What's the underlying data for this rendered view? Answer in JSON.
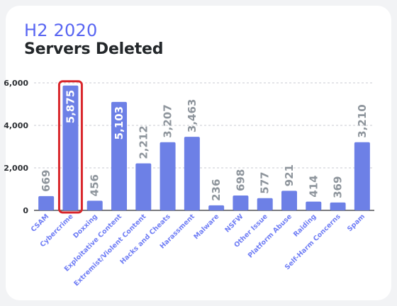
{
  "colors": {
    "background": "#f2f3f5",
    "card": "#ffffff",
    "accent": "#5865f2",
    "bar": "#6d80e6",
    "label_outside": "#8e959c",
    "label_inside": "#ffffff",
    "highlight": "#d9262b",
    "grid": "#c8cbd0",
    "axis": "#2c2f33"
  },
  "header": {
    "subtitle": "H2 2020",
    "title": "Servers Deleted"
  },
  "chart_data": {
    "type": "bar",
    "title": "Servers Deleted",
    "subtitle": "H2 2020",
    "xlabel": "",
    "ylabel": "",
    "ylim": [
      0,
      6000
    ],
    "yticks": [
      "0",
      "2,000",
      "4,000",
      "6,000"
    ],
    "grid": true,
    "legend": "none",
    "highlighted_category": "Cybercrime",
    "categories": [
      "CSAM",
      "Cybercrime",
      "Doxxing",
      "Exploitative Content",
      "Extremist/Violent Content",
      "Hacks and Cheats",
      "Harassment",
      "Malware",
      "NSFW",
      "Other Issue",
      "Platform Abuse",
      "Raiding",
      "Self-Harm Concerns",
      "Spam"
    ],
    "values": [
      669,
      5875,
      456,
      5103,
      2212,
      3207,
      3463,
      236,
      698,
      577,
      921,
      414,
      369,
      3210
    ],
    "value_labels": [
      "669",
      "5,875",
      "456",
      "5,103",
      "2,212",
      "3,207",
      "3,463",
      "236",
      "698",
      "577",
      "921",
      "414",
      "369",
      "3,210"
    ]
  }
}
